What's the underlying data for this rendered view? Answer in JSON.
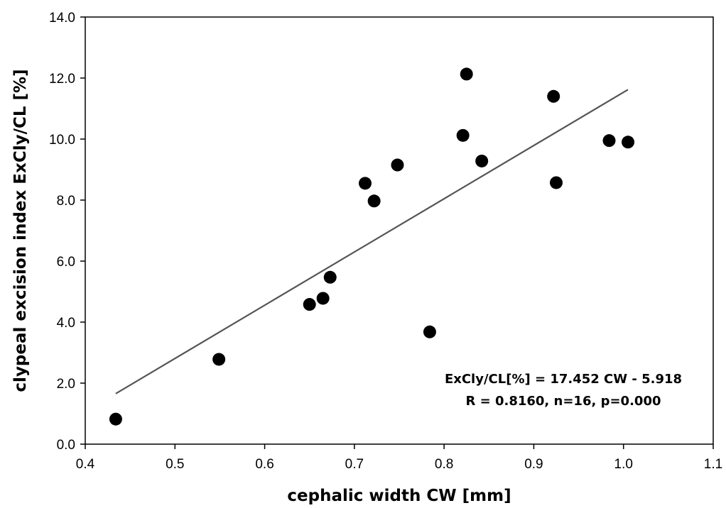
{
  "chart_data": {
    "type": "scatter",
    "xlabel": "cephalic width CW [mm]",
    "ylabel": "clypeal excision index ExCly/CL [%]",
    "xlim": [
      0.4,
      1.1
    ],
    "ylim": [
      0.0,
      14.0
    ],
    "x_ticks": [
      "0.4",
      "0.5",
      "0.6",
      "0.7",
      "0.8",
      "0.9",
      "1.0",
      "1.1"
    ],
    "y_ticks": [
      "0.0",
      "2.0",
      "4.0",
      "6.0",
      "8.0",
      "10.0",
      "12.0",
      "14.0"
    ],
    "grid": false,
    "legend": "none",
    "points": [
      {
        "x": 0.434,
        "y": 0.82
      },
      {
        "x": 0.549,
        "y": 2.78
      },
      {
        "x": 0.65,
        "y": 4.58
      },
      {
        "x": 0.665,
        "y": 4.78
      },
      {
        "x": 0.673,
        "y": 5.47
      },
      {
        "x": 0.712,
        "y": 8.55
      },
      {
        "x": 0.722,
        "y": 7.97
      },
      {
        "x": 0.748,
        "y": 9.15
      },
      {
        "x": 0.784,
        "y": 3.68
      },
      {
        "x": 0.821,
        "y": 10.12
      },
      {
        "x": 0.825,
        "y": 12.13
      },
      {
        "x": 0.842,
        "y": 9.28
      },
      {
        "x": 0.922,
        "y": 11.4
      },
      {
        "x": 0.925,
        "y": 8.57
      },
      {
        "x": 0.984,
        "y": 9.95
      },
      {
        "x": 1.005,
        "y": 9.9
      }
    ],
    "trendline": {
      "slope": 17.452,
      "intercept": -5.918,
      "x_start": 0.434,
      "x_end": 1.005
    },
    "annotations": [
      "ExCly/CL[%]  = 17.452 CW - 5.918",
      "R = 0.8160, n=16, p=0.000"
    ],
    "colors": {
      "points": "#000000",
      "trendline": "#555555",
      "axes": "#000000"
    }
  }
}
